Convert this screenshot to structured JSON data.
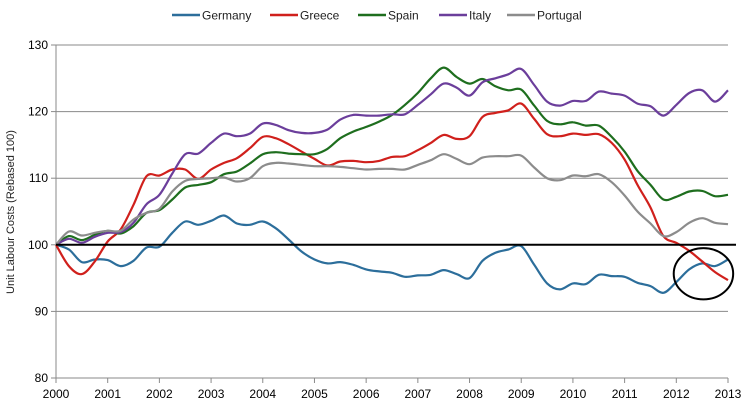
{
  "chart_data": {
    "type": "line",
    "title": "",
    "xlabel": "",
    "ylabel": "Unit Labour Costs (Rebased 100)",
    "xlim": [
      2000,
      2013
    ],
    "ylim": [
      80,
      130
    ],
    "y_ticks": [
      80,
      90,
      100,
      110,
      120,
      130
    ],
    "x_ticks": [
      2000,
      2001,
      2002,
      2003,
      2004,
      2005,
      2006,
      2007,
      2008,
      2009,
      2010,
      2011,
      2012,
      2013
    ],
    "y_tick_labels": [
      "80",
      "90",
      "100",
      "110",
      "120",
      "130"
    ],
    "x_tick_labels": [
      "2000",
      "2001",
      "2002",
      "2003",
      "2004",
      "2005",
      "2006",
      "2007",
      "2008",
      "2009",
      "2010",
      "2011",
      "2012",
      "2013"
    ],
    "grid": "horizontal",
    "legend_position": "top",
    "reference_line": {
      "value": 100,
      "color": "#000000"
    },
    "annotation": {
      "type": "ellipse",
      "description": "circle highlighting Germany-Greece crossover",
      "x_range": [
        2011.95,
        2013.1
      ],
      "y_range": [
        91.8,
        99.5
      ]
    },
    "x": [
      2000,
      2000.25,
      2000.5,
      2000.75,
      2001,
      2001.25,
      2001.5,
      2001.75,
      2002,
      2002.25,
      2002.5,
      2002.75,
      2003,
      2003.25,
      2003.5,
      2003.75,
      2004,
      2004.25,
      2004.5,
      2004.75,
      2005,
      2005.25,
      2005.5,
      2005.75,
      2006,
      2006.25,
      2006.5,
      2006.75,
      2007,
      2007.25,
      2007.5,
      2007.75,
      2008,
      2008.25,
      2008.5,
      2008.75,
      2009,
      2009.25,
      2009.5,
      2009.75,
      2010,
      2010.25,
      2010.5,
      2010.75,
      2011,
      2011.25,
      2011.5,
      2011.75,
      2012,
      2012.25,
      2012.5,
      2012.75,
      2013
    ],
    "series": [
      {
        "name": "Germany",
        "color": "#2C6E9B",
        "values": [
          100,
          99.3,
          97.4,
          97.8,
          97.7,
          96.8,
          97.6,
          99.6,
          99.7,
          101.8,
          103.5,
          103.0,
          103.6,
          104.4,
          103.2,
          103.0,
          103.5,
          102.5,
          100.8,
          99.0,
          97.8,
          97.2,
          97.4,
          97.0,
          96.3,
          96.0,
          95.8,
          95.2,
          95.4,
          95.5,
          96.2,
          95.6,
          95.0,
          97.6,
          98.8,
          99.3,
          99.8,
          97.0,
          94.2,
          93.3,
          94.2,
          94.1,
          95.5,
          95.3,
          95.2,
          94.3,
          93.8,
          92.8,
          94.4,
          96.3,
          97.2,
          96.8,
          97.8
        ]
      },
      {
        "name": "Greece",
        "color": "#D0201C",
        "values": [
          100,
          96.8,
          95.6,
          97.5,
          100.5,
          102.3,
          106.0,
          110.3,
          110.4,
          111.3,
          111.3,
          109.9,
          111.3,
          112.3,
          113.0,
          114.5,
          116.2,
          116.0,
          115.1,
          114.0,
          112.9,
          111.9,
          112.5,
          112.6,
          112.4,
          112.6,
          113.2,
          113.3,
          114.2,
          115.3,
          116.5,
          115.9,
          116.3,
          119.2,
          119.8,
          120.2,
          121.2,
          118.9,
          116.6,
          116.3,
          116.7,
          116.5,
          116.6,
          115.3,
          112.8,
          109.0,
          105.6,
          101.3,
          100.3,
          99.1,
          97.5,
          95.9,
          94.7
        ]
      },
      {
        "name": "Spain",
        "color": "#1E6E1E",
        "values": [
          100,
          101.3,
          100.7,
          101.5,
          102.1,
          101.7,
          102.8,
          104.8,
          105.2,
          106.8,
          108.6,
          109.0,
          109.4,
          110.6,
          111.0,
          112.2,
          113.6,
          113.9,
          113.7,
          113.6,
          113.6,
          114.4,
          116.0,
          117.0,
          117.7,
          118.5,
          119.5,
          121.0,
          122.8,
          125.0,
          126.6,
          125.2,
          124.2,
          124.9,
          123.8,
          123.2,
          123.3,
          120.9,
          118.6,
          118.1,
          118.4,
          117.9,
          117.9,
          116.2,
          114.0,
          111.1,
          109.0,
          106.8,
          107.2,
          108.0,
          108.1,
          107.3,
          107.5
        ]
      },
      {
        "name": "Italy",
        "color": "#6B3E9B",
        "values": [
          100,
          100.9,
          100.3,
          101.2,
          101.8,
          101.9,
          103.3,
          106.1,
          107.5,
          110.7,
          113.6,
          113.7,
          115.3,
          116.7,
          116.3,
          116.7,
          118.2,
          118.0,
          117.2,
          116.8,
          116.8,
          117.3,
          118.8,
          119.5,
          119.4,
          119.4,
          119.6,
          119.6,
          121.0,
          122.6,
          124.2,
          123.6,
          122.4,
          124.4,
          125.0,
          125.6,
          126.4,
          124.0,
          121.5,
          120.9,
          121.6,
          121.6,
          123.0,
          122.7,
          122.4,
          121.2,
          120.8,
          119.4,
          121.0,
          122.8,
          123.2,
          121.5,
          123.2
        ]
      },
      {
        "name": "Portugal",
        "color": "#8C8C8C",
        "values": [
          100,
          102.0,
          101.4,
          101.8,
          102.1,
          102.1,
          103.8,
          104.8,
          105.4,
          108.0,
          109.6,
          109.9,
          110.0,
          110.1,
          109.5,
          110.0,
          111.8,
          112.3,
          112.2,
          112.0,
          111.8,
          111.8,
          111.7,
          111.5,
          111.3,
          111.4,
          111.4,
          111.3,
          112.0,
          112.7,
          113.6,
          112.9,
          112.1,
          113.1,
          113.3,
          113.3,
          113.4,
          111.6,
          110.0,
          109.7,
          110.4,
          110.3,
          110.6,
          109.4,
          107.4,
          105.0,
          103.2,
          101.3,
          101.9,
          103.3,
          104.0,
          103.3,
          103.1
        ]
      }
    ]
  }
}
